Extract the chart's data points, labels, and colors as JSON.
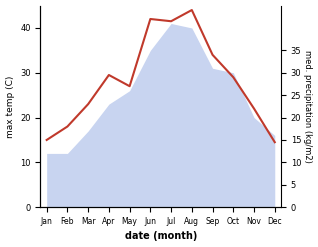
{
  "months": [
    "Jan",
    "Feb",
    "Mar",
    "Apr",
    "May",
    "Jun",
    "Jul",
    "Aug",
    "Sep",
    "Oct",
    "Nov",
    "Dec"
  ],
  "temp": [
    15,
    18,
    23,
    29.5,
    27,
    42,
    41.5,
    44,
    34,
    29,
    22,
    14.5
  ],
  "precip_left": [
    12,
    12,
    17,
    23,
    26,
    35,
    41,
    40,
    31,
    30,
    20,
    16
  ],
  "temp_color": "#c0392b",
  "precip_color_fill": "#c8d4f0",
  "ylabel_left": "max temp (C)",
  "ylabel_right": "med. precipitation (kg/m2)",
  "xlabel": "date (month)",
  "ylim_left": [
    0,
    45
  ],
  "ylim_right": [
    0,
    35
  ],
  "yticks_left": [
    0,
    10,
    20,
    30,
    40
  ],
  "yticks_right": [
    0,
    5,
    10,
    15,
    20,
    25,
    30,
    35
  ],
  "background_color": "#ffffff"
}
